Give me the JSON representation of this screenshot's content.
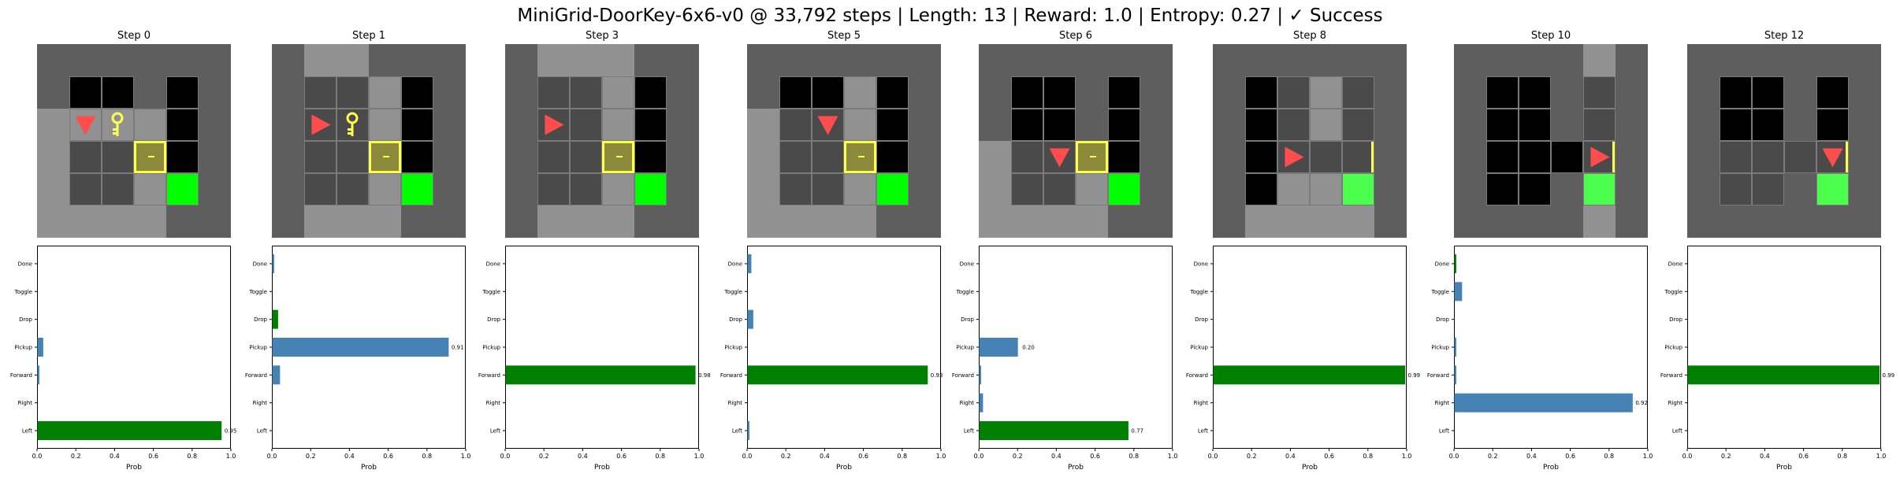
{
  "title": "MiniGrid-DoorKey-6x6-v0 @ 33,792 steps | Length: 13 | Reward: 1.0 | Entropy: 0.27 | ✓ Success",
  "colors": {
    "wall": "#5e5e5e",
    "floor": "#919191",
    "room_dark": "#4a4a4a",
    "black": "#000000",
    "goal": "#00ff00",
    "goal_dim": "#4dff4d",
    "door": "#ffff4d",
    "key": "#ffff4d",
    "agent": "#ff4d4d",
    "bar_blue": "#4682b4",
    "bar_green": "#008000"
  },
  "chart_data": [
    {
      "type": "bar",
      "orientation": "horizontal",
      "title": "Step 0",
      "categories": [
        "Left",
        "Right",
        "Forward",
        "Pickup",
        "Drop",
        "Toggle",
        "Done"
      ],
      "values": [
        0.95,
        0.0,
        0.01,
        0.03,
        0.0,
        0.0,
        0.0
      ],
      "chosen": "Left",
      "value_label": "0.95",
      "xlabel": "Prob",
      "xlim": [
        0,
        1.0
      ],
      "xticks": [
        "0.0",
        "0.2",
        "0.4",
        "0.6",
        "0.8",
        "1.0"
      ]
    },
    {
      "type": "bar",
      "orientation": "horizontal",
      "title": "Step 1",
      "categories": [
        "Left",
        "Right",
        "Forward",
        "Pickup",
        "Drop",
        "Toggle",
        "Done"
      ],
      "values": [
        0.0,
        0.0,
        0.04,
        0.91,
        0.03,
        0.0,
        0.01
      ],
      "chosen": "Drop",
      "value_label": "0.91",
      "xlabel": "Prob",
      "xlim": [
        0,
        1.0
      ],
      "xticks": [
        "0.0",
        "0.2",
        "0.4",
        "0.6",
        "0.8",
        "1.0"
      ]
    },
    {
      "type": "bar",
      "orientation": "horizontal",
      "title": "Step 3",
      "categories": [
        "Left",
        "Right",
        "Forward",
        "Pickup",
        "Drop",
        "Toggle",
        "Done"
      ],
      "values": [
        0.0,
        0.0,
        0.98,
        0.0,
        0.0,
        0.0,
        0.0
      ],
      "chosen": "Forward",
      "value_label": "0.98",
      "xlabel": "Prob",
      "xlim": [
        0,
        1.0
      ],
      "xticks": [
        "0.0",
        "0.2",
        "0.4",
        "0.6",
        "0.8",
        "1.0"
      ]
    },
    {
      "type": "bar",
      "orientation": "horizontal",
      "title": "Step 5",
      "categories": [
        "Left",
        "Right",
        "Forward",
        "Pickup",
        "Drop",
        "Toggle",
        "Done"
      ],
      "values": [
        0.01,
        0.0,
        0.93,
        0.0,
        0.03,
        0.0,
        0.02
      ],
      "chosen": "Forward",
      "value_label": "0.93",
      "xlabel": "Prob",
      "xlim": [
        0,
        1.0
      ],
      "xticks": [
        "0.0",
        "0.2",
        "0.4",
        "0.6",
        "0.8",
        "1.0"
      ]
    },
    {
      "type": "bar",
      "orientation": "horizontal",
      "title": "Step 6",
      "categories": [
        "Left",
        "Right",
        "Forward",
        "Pickup",
        "Drop",
        "Toggle",
        "Done"
      ],
      "values": [
        0.77,
        0.02,
        0.01,
        0.2,
        0.0,
        0.0,
        0.0
      ],
      "chosen": "Left",
      "value_label": "0.77",
      "second_label": "0.20",
      "xlabel": "Prob",
      "xlim": [
        0,
        1.0
      ],
      "xticks": [
        "0.0",
        "0.2",
        "0.4",
        "0.6",
        "0.8",
        "1.0"
      ]
    },
    {
      "type": "bar",
      "orientation": "horizontal",
      "title": "Step 8",
      "categories": [
        "Left",
        "Right",
        "Forward",
        "Pickup",
        "Drop",
        "Toggle",
        "Done"
      ],
      "values": [
        0.0,
        0.0,
        0.99,
        0.0,
        0.0,
        0.0,
        0.0
      ],
      "chosen": "Forward",
      "value_label": "0.99",
      "xlabel": "Prob",
      "xlim": [
        0,
        1.0
      ],
      "xticks": [
        "0.0",
        "0.2",
        "0.4",
        "0.6",
        "0.8",
        "1.0"
      ]
    },
    {
      "type": "bar",
      "orientation": "horizontal",
      "title": "Step 10",
      "categories": [
        "Left",
        "Right",
        "Forward",
        "Pickup",
        "Drop",
        "Toggle",
        "Done"
      ],
      "values": [
        0.0,
        0.92,
        0.01,
        0.01,
        0.0,
        0.04,
        0.01
      ],
      "chosen": "Done",
      "value_label": "0.92",
      "xlabel": "Prob",
      "xlim": [
        0,
        1.0
      ],
      "xticks": [
        "0.0",
        "0.2",
        "0.4",
        "0.6",
        "0.8",
        "1.0"
      ]
    },
    {
      "type": "bar",
      "orientation": "horizontal",
      "title": "Step 12",
      "categories": [
        "Left",
        "Right",
        "Forward",
        "Pickup",
        "Drop",
        "Toggle",
        "Done"
      ],
      "values": [
        0.0,
        0.0,
        0.99,
        0.0,
        0.0,
        0.0,
        0.0
      ],
      "chosen": "Forward",
      "value_label": "0.99",
      "xlabel": "Prob",
      "xlim": [
        0,
        1.0
      ],
      "xticks": [
        "0.0",
        "0.2",
        "0.4",
        "0.6",
        "0.8",
        "1.0"
      ]
    }
  ],
  "frames": [
    {
      "cells": [
        "WWWWWW",
        "WBBWBW",
        "FFFFBW",
        "FRRDBW",
        "FRRFGW",
        "FFFFWW"
      ],
      "agent": {
        "row": 2,
        "col": 1,
        "dir": "down"
      },
      "key": {
        "row": 2,
        "col": 2
      },
      "door": {
        "row": 3,
        "col": 3,
        "state": "locked"
      }
    },
    {
      "cells": [
        "WFFWWW",
        "WRRFBW",
        "WRRFBW",
        "WRRDBW",
        "WRRFGW",
        "WFFFWW"
      ],
      "agent": {
        "row": 2,
        "col": 1,
        "dir": "right"
      },
      "key": {
        "row": 2,
        "col": 2
      },
      "door": {
        "row": 3,
        "col": 3,
        "state": "locked"
      }
    },
    {
      "cells": [
        "WFFFWW",
        "WRRFBW",
        "WRRFBW",
        "WRRDBW",
        "WRRFGW",
        "WFFFWW"
      ],
      "agent": {
        "row": 2,
        "col": 1,
        "dir": "right"
      },
      "door": {
        "row": 3,
        "col": 3,
        "state": "locked"
      }
    },
    {
      "cells": [
        "WWWWWW",
        "WBBFBW",
        "FRRFBW",
        "FRRDBW",
        "FRRFGW",
        "FFFFWW"
      ],
      "agent": {
        "row": 2,
        "col": 2,
        "dir": "down"
      },
      "door": {
        "row": 3,
        "col": 3,
        "state": "locked"
      }
    },
    {
      "cells": [
        "WWWWWW",
        "WBBWBW",
        "WBBWBW",
        "FRRDBW",
        "FRRFGW",
        "FFFFWW"
      ],
      "agent": {
        "row": 3,
        "col": 2,
        "dir": "down"
      },
      "door": {
        "row": 3,
        "col": 3,
        "state": "locked"
      }
    },
    {
      "cells": [
        "WWWWWW",
        "WBRFRW",
        "WBRFRW",
        "WBRROW",
        "WBFFHW",
        "WFFFFW"
      ],
      "agent": {
        "row": 3,
        "col": 2,
        "dir": "right"
      },
      "door": {
        "row": 3,
        "col": 4,
        "state": "open"
      }
    },
    {
      "cells": [
        "WWWWFW",
        "WBBWRW",
        "WBBWRW",
        "WBBBOW",
        "WBBWHW",
        "WWWWFW"
      ],
      "agent": {
        "row": 3,
        "col": 4,
        "dir": "right"
      },
      "door": {
        "row": 3,
        "col": 4,
        "state": "open"
      }
    },
    {
      "cells": [
        "WWWWWW",
        "WBBWBW",
        "WBBWBW",
        "WRRROW",
        "WRRWHW",
        "WWWWWW"
      ],
      "agent": {
        "row": 3,
        "col": 4,
        "dir": "down"
      },
      "door": {
        "row": 3,
        "col": 4,
        "state": "open"
      }
    }
  ]
}
